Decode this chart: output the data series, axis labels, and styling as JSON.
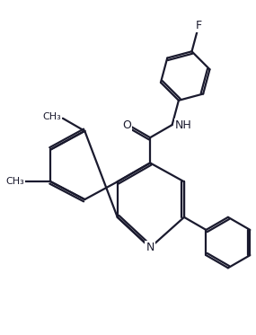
{
  "bg_color": "#ffffff",
  "line_color": "#1a1a2e",
  "line_width": 1.6,
  "font_size_label": 8.5,
  "fig_width": 2.85,
  "fig_height": 3.73,
  "dpi": 100,
  "xlim": [
    0,
    10
  ],
  "ylim": [
    0,
    13
  ]
}
